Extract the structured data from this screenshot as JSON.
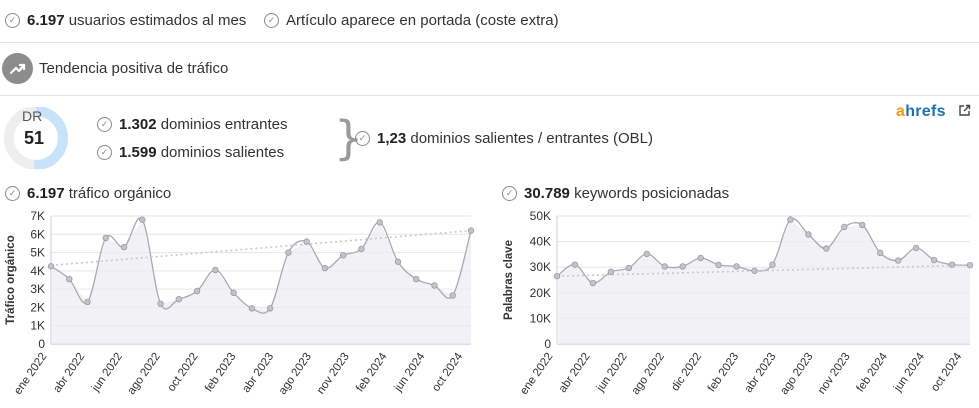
{
  "stats": {
    "users_value": "6.197",
    "users_label": "usuarios estimados al mes",
    "frontpage_label": "Artículo aparece en portada (coste extra)",
    "trend_label": "Tendencia positiva de tráfico"
  },
  "dr": {
    "label": "DR",
    "value": "51",
    "percent": 51,
    "incoming_value": "1.302",
    "incoming_label": "dominios entrantes",
    "outgoing_value": "1.599",
    "outgoing_label": "dominios salientes",
    "obl_value": "1,23",
    "obl_label": "dominios salientes / entrantes (OBL)"
  },
  "brand": {
    "a": "a",
    "rest": "hrefs",
    "external_icon": "external-link-icon"
  },
  "colors": {
    "accent_blue": "#c7e3fb",
    "dr_track": "#eeeeee",
    "line": "#a9a9b4",
    "point": "#c4c4c8",
    "trend": "#c9c9c9",
    "ahrefs_orange": "#f39c12",
    "ahrefs_blue": "#1f6fb5"
  },
  "charts": {
    "traffic_title_value": "6.197",
    "traffic_title_label": "tráfico orgánico",
    "keywords_title_value": "30.789",
    "keywords_title_label": "keywords posicionadas"
  },
  "chart_data": [
    {
      "type": "line",
      "title": "6.197 tráfico orgánico",
      "xlabel": "",
      "ylabel": "Tráfico orgánico",
      "ylim": [
        0,
        7000
      ],
      "yticks": [
        "0",
        "1K",
        "2K",
        "3K",
        "4K",
        "5K",
        "6K",
        "7K"
      ],
      "xticks": [
        "ene 2022",
        "abr 2022",
        "jun 2022",
        "ago 2022",
        "oct 2022",
        "feb 2023",
        "abr 2023",
        "ago 2023",
        "nov 2023",
        "feb 2024",
        "jun 2024",
        "oct 2024"
      ],
      "grid": true,
      "series": [
        {
          "values": [
            4250,
            3550,
            2300,
            5800,
            5300,
            6800,
            2200,
            2450,
            2900,
            4050,
            2800,
            1950,
            1950,
            5000,
            5600,
            4150,
            4850,
            5200,
            6650,
            4500,
            3550,
            3200,
            2650,
            6200
          ]
        }
      ],
      "trend": [
        4300,
        6200
      ]
    },
    {
      "type": "area",
      "title": "30.789 keywords posicionadas",
      "xlabel": "",
      "ylabel": "Palabras clave",
      "ylim": [
        0,
        50000
      ],
      "yticks": [
        "0",
        "10K",
        "20K",
        "30K",
        "40K",
        "50K"
      ],
      "xticks": [
        "ene 2022",
        "abr 2022",
        "jun 2022",
        "ago 2022",
        "dic 2022",
        "feb 2023",
        "abr 2023",
        "ago 2023",
        "nov 2023",
        "feb 2024",
        "jun 2024",
        "oct 2024"
      ],
      "grid": true,
      "series": [
        {
          "values": [
            26500,
            31000,
            23800,
            28200,
            29700,
            35200,
            30300,
            30300,
            33600,
            30900,
            30300,
            28600,
            31000,
            48600,
            42800,
            37300,
            45700,
            46500,
            35600,
            32600,
            37500,
            32800,
            31000,
            30800
          ]
        }
      ],
      "trend": [
        26500,
        30800
      ]
    }
  ]
}
